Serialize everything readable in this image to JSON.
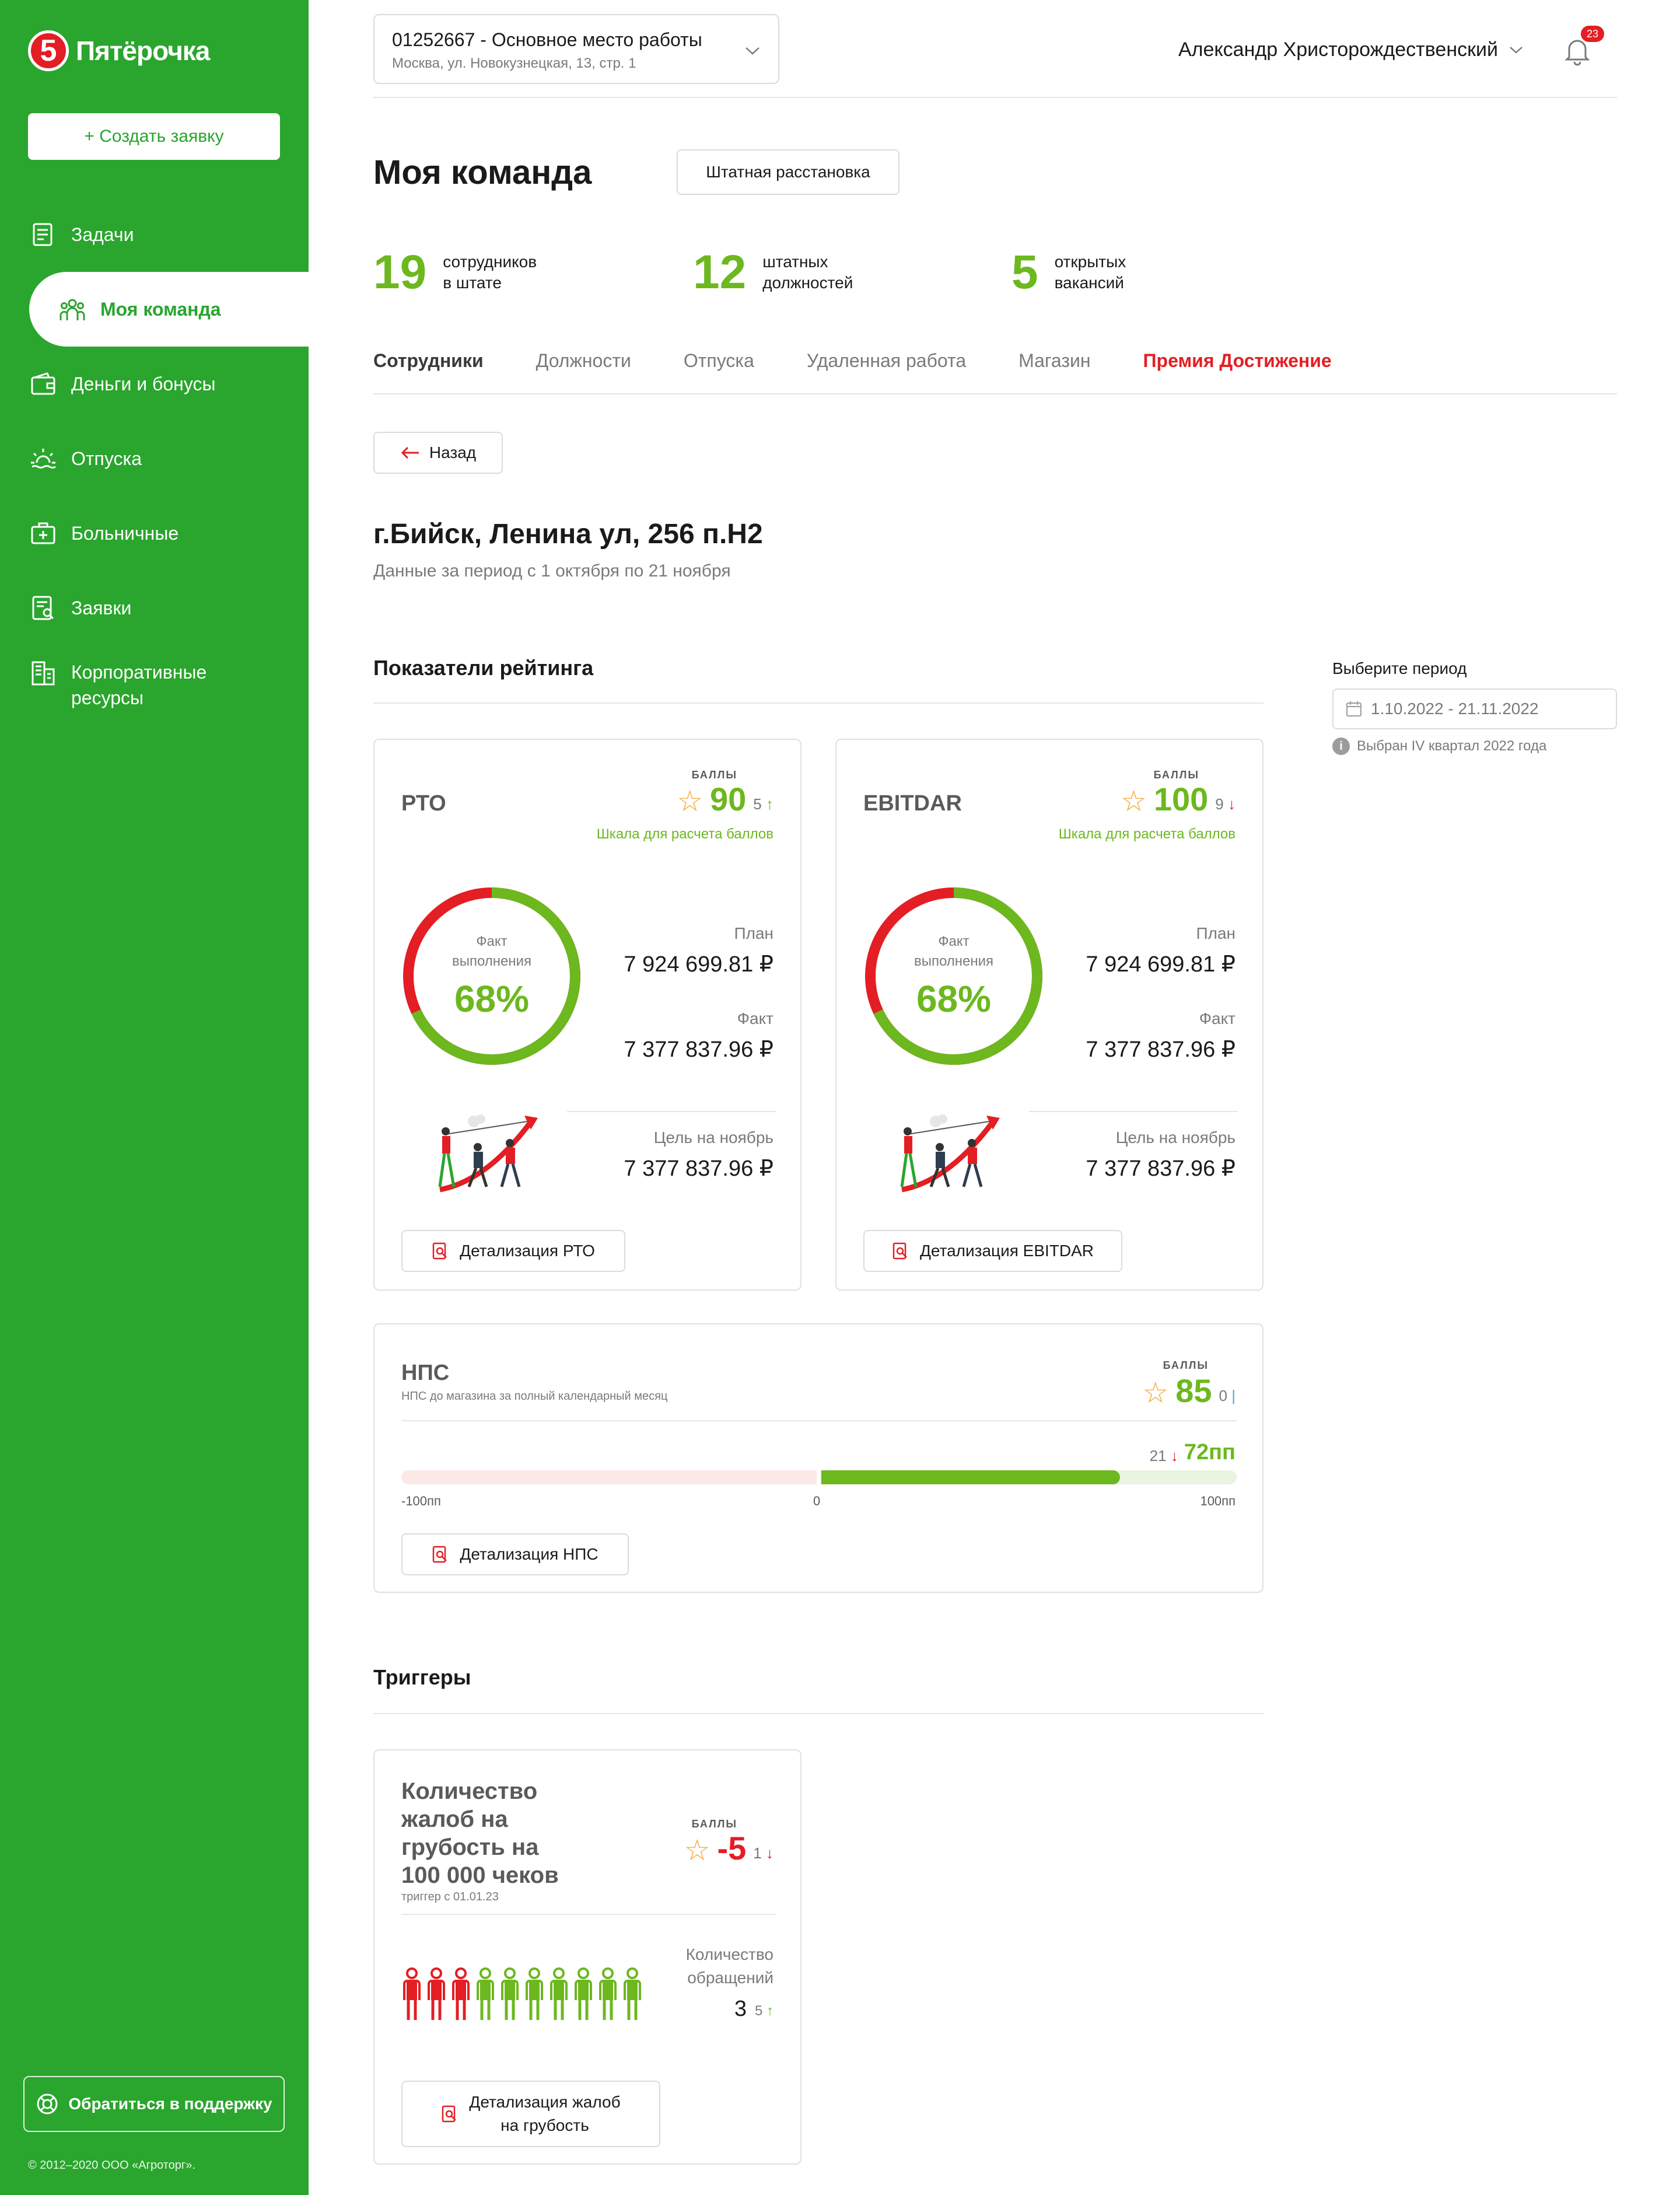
{
  "brand": {
    "logo_digit": "5",
    "name": "Пятёрочка",
    "accent": "#2aa52e",
    "red": "#e31e24",
    "green": "#6cb81e"
  },
  "sidebar": {
    "create_label": "+ Создать заявку",
    "items": [
      {
        "label": "Задачи",
        "icon": "tasks-icon"
      },
      {
        "label": "Моя команда",
        "icon": "team-icon",
        "active": true
      },
      {
        "label": "Деньги и бонусы",
        "icon": "wallet-icon"
      },
      {
        "label": "Отпуска",
        "icon": "sun-icon"
      },
      {
        "label": "Больничные",
        "icon": "medkit-icon"
      },
      {
        "label": "Заявки",
        "icon": "requests-icon"
      },
      {
        "label": "Корпоративные ресурсы",
        "icon": "buildings-icon"
      }
    ],
    "support_label": "Обратиться в поддержку",
    "copyright": "© 2012–2020 ООО «Агроторг»."
  },
  "header": {
    "workplace_title": "01252667 - Основное место работы",
    "workplace_address": "Москва, ул. Новокузнецкая, 13, стр. 1",
    "user_name": "Александр Христорождественский",
    "notifications": "23"
  },
  "page": {
    "title": "Моя команда",
    "staff_button": "Штатная расстановка",
    "stats": [
      {
        "value": "19",
        "label1": "сотрудников",
        "label2": "в штате"
      },
      {
        "value": "12",
        "label1": "штатных",
        "label2": "должностей"
      },
      {
        "value": "5",
        "label1": "открытых",
        "label2": "вакансий"
      }
    ],
    "tabs": [
      "Сотрудники",
      "Должности",
      "Отпуска",
      "Удаленная работа",
      "Магазин",
      "Премия Достижение"
    ],
    "back_label": "Назад",
    "store_title": "г.Бийск, Ленина ул, 256 п.Н2",
    "store_sub": "Данные за период с 1 октября по 21 ноября"
  },
  "period": {
    "label": "Выберите период",
    "value": "1.10.2022 - 21.11.2022",
    "hint": "Выбран IV квартал 2022 года"
  },
  "rating": {
    "title": "Показатели рейтинга",
    "cards": [
      {
        "name": "РТО",
        "score_caption": "БАЛЛЫ",
        "score": "90",
        "delta": "5",
        "delta_dir": "up",
        "scale_link": "Шкала для расчета баллов",
        "ring_caption1": "Факт",
        "ring_caption2": "выполнения",
        "percent": "68%",
        "percent_value": 0.68,
        "plan_label": "План",
        "plan": "7 924 699.81 ₽",
        "fact_label": "Факт",
        "fact": "7 377 837.96 ₽",
        "goal_label": "Цель на ноябрь",
        "goal": "7 377 837.96 ₽",
        "detail": "Детализация РТО"
      },
      {
        "name": "EBITDAR",
        "score_caption": "БАЛЛЫ",
        "score": "100",
        "delta": "9",
        "delta_dir": "down",
        "scale_link": "Шкала для расчета баллов",
        "ring_caption1": "Факт",
        "ring_caption2": "выполнения",
        "percent": "68%",
        "percent_value": 0.68,
        "plan_label": "План",
        "plan": "7 924 699.81 ₽",
        "fact_label": "Факт",
        "fact": "7 377 837.96 ₽",
        "goal_label": "Цель на ноябрь",
        "goal": "7 377 837.96 ₽",
        "detail": "Детализация EBITDAR"
      }
    ],
    "nps": {
      "name": "НПС",
      "subtitle": "НПС до магазина за полный календарный месяц",
      "score_caption": "БАЛЛЫ",
      "score": "85",
      "delta": "0",
      "change": "21",
      "value": "72пп",
      "value_number": 72,
      "min_label": "-100пп",
      "zero_label": "0",
      "max_label": "100пп",
      "detail": "Детализация НПС"
    }
  },
  "triggers": {
    "title": "Триггеры",
    "card": {
      "name_lines": [
        "Количество",
        "жалоб на",
        "грубость на",
        "100 000 чеков"
      ],
      "subtitle": "триггер с 01.01.23",
      "score_caption": "БАЛЛЫ",
      "score": "-5",
      "delta": "1",
      "count_label1": "Количество",
      "count_label2": "обращений",
      "count": "3",
      "count_delta": "5",
      "people_total": 10,
      "people_red": 3,
      "detail_line1": "Детализация жалоб",
      "detail_line2": "на грубость"
    }
  }
}
